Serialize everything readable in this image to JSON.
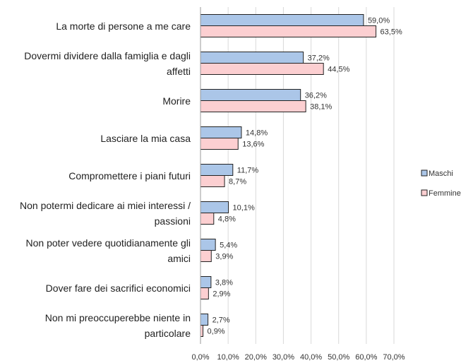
{
  "chart_data": {
    "type": "hbar",
    "categories": [
      "La morte di persone a me care",
      "Dovermi dividere dalla famiglia e dagli affetti",
      "Morire",
      "Lasciare la mia casa",
      "Compromettere i piani futuri",
      "Non potermi dedicare ai miei interessi / passioni",
      "Non poter vedere quotidianamente gli amici",
      "Dover fare dei sacrifici economici",
      "Non mi preoccuperebbe niente in particolare"
    ],
    "series": [
      {
        "name": "Maschi",
        "color": "#abc6e8",
        "values": [
          59.0,
          37.2,
          36.2,
          14.8,
          11.7,
          10.1,
          5.4,
          3.8,
          2.7
        ],
        "value_labels": [
          "59,0%",
          "37,2%",
          "36,2%",
          "14,8%",
          "11,7%",
          "10,1%",
          "5,4%",
          "3,8%",
          "2,7%"
        ]
      },
      {
        "name": "Femmine",
        "color": "#fccfd1",
        "values": [
          63.5,
          44.5,
          38.1,
          13.6,
          8.7,
          4.8,
          3.9,
          2.9,
          0.9
        ],
        "value_labels": [
          "63,5%",
          "44,5%",
          "38,1%",
          "13,6%",
          "8,7%",
          "4,8%",
          "3,9%",
          "2,9%",
          "0,9%"
        ]
      }
    ],
    "xlim": [
      0,
      70
    ],
    "xticks": [
      {
        "value": 0,
        "label": "0,0%"
      },
      {
        "value": 10,
        "label": "10,0%"
      },
      {
        "value": 20,
        "label": "20,0%"
      },
      {
        "value": 30,
        "label": "30,0%"
      },
      {
        "value": 40,
        "label": "40,0%"
      },
      {
        "value": 50,
        "label": "50,0%"
      },
      {
        "value": 60,
        "label": "60,0%"
      },
      {
        "value": 70,
        "label": "70,0%"
      }
    ],
    "grid": true,
    "legend": "right"
  }
}
